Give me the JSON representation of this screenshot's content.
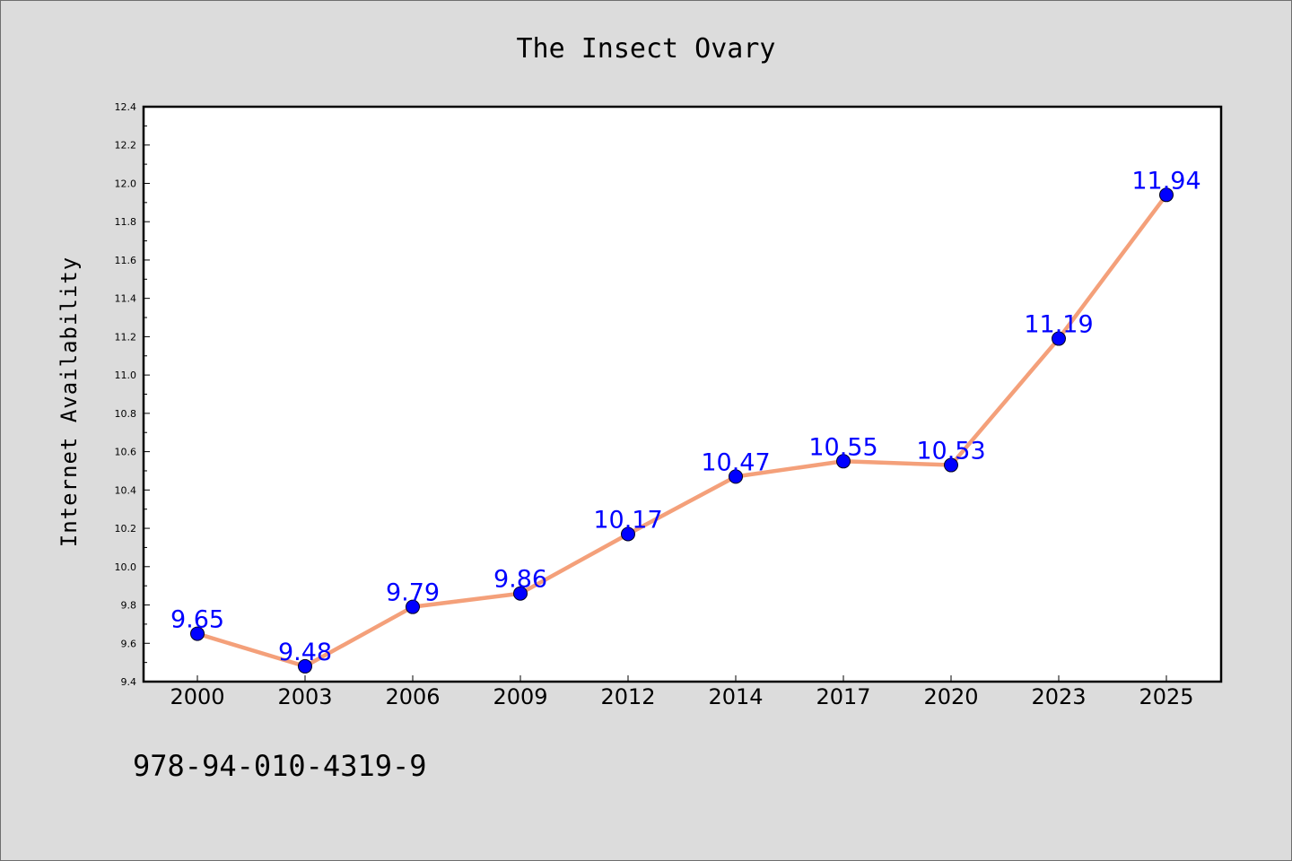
{
  "chart_data": {
    "type": "line",
    "title": "The Insect Ovary",
    "xlabel": "",
    "ylabel": "Internet Availability",
    "categories": [
      "2000",
      "2003",
      "2006",
      "2009",
      "2012",
      "2014",
      "2017",
      "2020",
      "2023",
      "2025"
    ],
    "values": [
      9.65,
      9.48,
      9.79,
      9.86,
      10.17,
      10.47,
      10.55,
      10.53,
      11.19,
      11.94
    ],
    "data_labels": [
      "9.65",
      "9.48",
      "9.79",
      "9.86",
      "10.17",
      "10.47",
      "10.55",
      "10.53",
      "11.19",
      "11.94"
    ],
    "ylim": [
      9.4,
      12.4
    ],
    "yticks": [
      "9.4",
      "9.6",
      "9.8",
      "10.0",
      "10.2",
      "10.4",
      "10.6",
      "10.8",
      "11.0",
      "11.2",
      "11.4",
      "11.6",
      "11.8",
      "12.0",
      "12.2",
      "12.4"
    ],
    "grid": false,
    "legend": "none",
    "colors": {
      "line": "#f4a07a",
      "marker": "#0000ff",
      "label": "#0000ff",
      "background": "#dcdcdc",
      "plot_background": "#ffffff"
    }
  },
  "footer_text": "978-94-010-4319-9"
}
